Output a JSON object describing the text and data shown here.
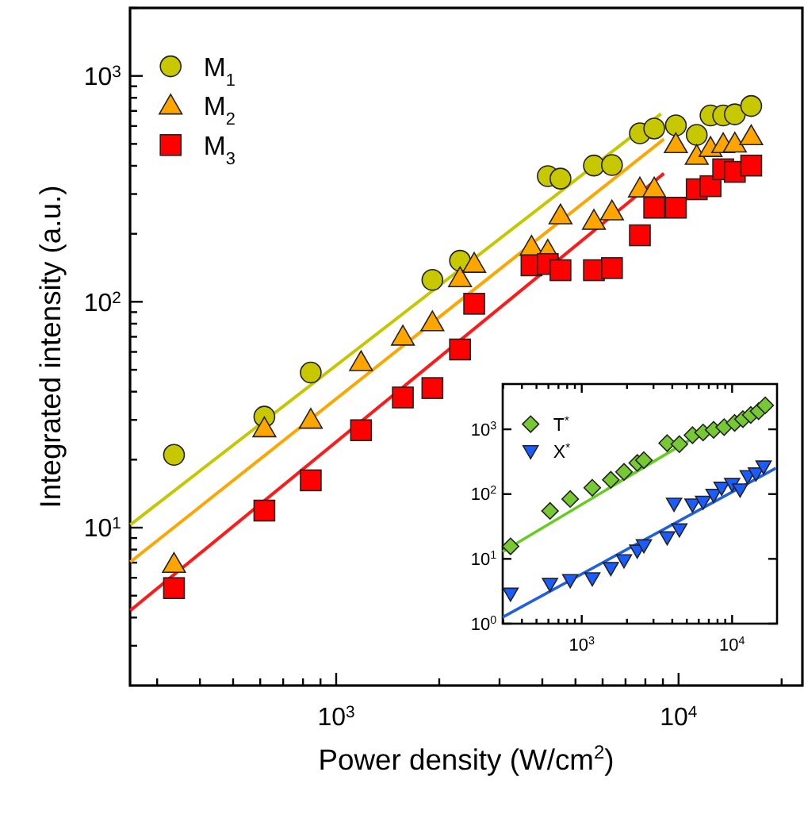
{
  "chart_data": [
    {
      "type": "scatter",
      "xlabel": "Power density (W/cm$^{2}$)",
      "ylabel": "Integrated intensity (a.u.)",
      "log": "xy",
      "grid": false,
      "legend": "top left",
      "xlim": [
        250,
        23000
      ],
      "ylim": [
        2,
        2000
      ],
      "xticks": [
        {
          "value": 300,
          "label": null
        },
        {
          "value": 400,
          "label": null
        },
        {
          "value": 500,
          "label": null
        },
        {
          "value": 600,
          "label": null
        },
        {
          "value": 700,
          "label": null
        },
        {
          "value": 800,
          "label": null
        },
        {
          "value": 900,
          "label": null
        },
        {
          "value": 1000,
          "label": "10$^{3}$"
        },
        {
          "value": 2000,
          "label": null
        },
        {
          "value": 3000,
          "label": null
        },
        {
          "value": 4000,
          "label": null
        },
        {
          "value": 5000,
          "label": null
        },
        {
          "value": 6000,
          "label": null
        },
        {
          "value": 7000,
          "label": null
        },
        {
          "value": 8000,
          "label": null
        },
        {
          "value": 9000,
          "label": null
        },
        {
          "value": 10000,
          "label": "10$^{4}$"
        },
        {
          "value": 20000,
          "label": null
        }
      ],
      "yticks": [
        {
          "value": 3,
          "label": null
        },
        {
          "value": 4,
          "label": null
        },
        {
          "value": 5,
          "label": null
        },
        {
          "value": 6,
          "label": null
        },
        {
          "value": 7,
          "label": null
        },
        {
          "value": 8,
          "label": null
        },
        {
          "value": 9,
          "label": null
        },
        {
          "value": 10,
          "label": "10$^{1}$"
        },
        {
          "value": 20,
          "label": null
        },
        {
          "value": 30,
          "label": null
        },
        {
          "value": 40,
          "label": null
        },
        {
          "value": 50,
          "label": null
        },
        {
          "value": 60,
          "label": null
        },
        {
          "value": 70,
          "label": null
        },
        {
          "value": 80,
          "label": null
        },
        {
          "value": 90,
          "label": null
        },
        {
          "value": 100,
          "label": "10$^{2}$"
        },
        {
          "value": 200,
          "label": null
        },
        {
          "value": 300,
          "label": null
        },
        {
          "value": 400,
          "label": null
        },
        {
          "value": 500,
          "label": null
        },
        {
          "value": 600,
          "label": null
        },
        {
          "value": 700,
          "label": null
        },
        {
          "value": 800,
          "label": null
        },
        {
          "value": 900,
          "label": null
        },
        {
          "value": 1000,
          "label": "10$^{3}$"
        },
        {
          "value": 2000,
          "label": null
        }
      ],
      "x": [
        336,
        617,
        843,
        1182,
        1566,
        1910,
        2300,
        2530,
        3720,
        4150,
        4520,
        5660,
        6390,
        7710,
        8490,
        9820,
        11300,
        12400,
        13500,
        14600,
        16300
      ],
      "series": [
        {
          "name": "M$_{1}$",
          "color": "#c8c800",
          "marker": "circle",
          "values": [
            21,
            31,
            48.6,
            null,
            null,
            125,
            152,
            null,
            null,
            360,
            351,
            401,
            403,
            557,
            585,
            604,
            548,
            668,
            668,
            676,
            736
          ]
        },
        {
          "name": "M$_{2}$",
          "color": "#ffa500",
          "marker": "triangle",
          "values": [
            6.9,
            27.5,
            30,
            54,
            70,
            81,
            127,
            147,
            175,
            168,
            241,
            228,
            251,
            317,
            317,
            498,
            442,
            479,
            498,
            501,
            540
          ]
        },
        {
          "name": "M$_{3}$",
          "color": "#ff0000",
          "marker": "square",
          "values": [
            5.4,
            11.9,
            16.2,
            27,
            37.7,
            41.5,
            61.5,
            98,
            145,
            147,
            138,
            138,
            141,
            197,
            261,
            261,
            315,
            325,
            386,
            376,
            401
          ]
        },
        {
          "type": "line",
          "color": "#c5c800",
          "x": [
            250.6,
            8890
          ],
          "values": [
            10.3,
            680
          ]
        },
        {
          "type": "line",
          "color": "#ffa500",
          "x": [
            250.6,
            9060
          ],
          "values": [
            7.05,
            525
          ]
        },
        {
          "type": "line",
          "color": "#ff1a1a",
          "x": [
            250.6,
            9060
          ],
          "values": [
            4.3,
            370
          ]
        }
      ]
    },
    {
      "type": "scatter",
      "log": "xy",
      "grid": false,
      "legend": "top left",
      "xlim": [
        298,
        19900
      ],
      "ylim": [
        1,
        5000
      ],
      "xticks": [
        {
          "value": 300,
          "label": null
        },
        {
          "value": 400,
          "label": null
        },
        {
          "value": 500,
          "label": null
        },
        {
          "value": 600,
          "label": null
        },
        {
          "value": 700,
          "label": null
        },
        {
          "value": 800,
          "label": null
        },
        {
          "value": 900,
          "label": null
        },
        {
          "value": 1000,
          "label": "10$^{3}$"
        },
        {
          "value": 2000,
          "label": null
        },
        {
          "value": 3000,
          "label": null
        },
        {
          "value": 4000,
          "label": null
        },
        {
          "value": 5000,
          "label": null
        },
        {
          "value": 6000,
          "label": null
        },
        {
          "value": 7000,
          "label": null
        },
        {
          "value": 8000,
          "label": null
        },
        {
          "value": 9000,
          "label": null
        },
        {
          "value": 10000,
          "label": "10$^{4}$"
        }
      ],
      "yticks": [
        {
          "value": 1,
          "label": "10$^{0}$"
        },
        {
          "value": 10,
          "label": "10$^{1}$"
        },
        {
          "value": 100,
          "label": "10$^{2}$"
        },
        {
          "value": 1000,
          "label": "10$^{3}$"
        }
      ],
      "series": [
        {
          "name": "T$^{*}$",
          "color": "#77c933",
          "marker": "diamond",
          "x": [
            336,
            615,
            838,
            1175,
            1560,
            1910,
            2340,
            2590,
            3700,
            4460,
            5450,
            6410,
            7530,
            8850,
            10400,
            11800,
            13300,
            15000,
            16600
          ],
          "values": [
            15.6,
            55,
            84,
            125,
            166,
            220,
            303,
            333,
            611,
            590,
            812,
            893,
            982,
            1080,
            1255,
            1433,
            1667,
            1900,
            2340
          ]
        },
        {
          "name": "X$^{*}$",
          "color": "#1a5cff",
          "marker": "triangle-down",
          "x": [
            336,
            615,
            838,
            1175,
            1560,
            1910,
            2340,
            2590,
            3700,
            4110,
            4460,
            5450,
            6410,
            7530,
            8510,
            10000,
            11300,
            12700,
            14400,
            16200
          ],
          "values": [
            2.9,
            4.1,
            4.7,
            5.0,
            7.2,
            9.5,
            13.4,
            16.2,
            21.5,
            71,
            28.5,
            69,
            76,
            97.5,
            125,
            143,
            118,
            189,
            208,
            266
          ]
        },
        {
          "type": "line",
          "color": "#66cc22",
          "x": [
            298,
            5920
          ],
          "values": [
            12.9,
            813
          ]
        },
        {
          "type": "line",
          "color": "#1f5fe0",
          "x": [
            298,
            19500
          ],
          "values": [
            1.26,
            251
          ]
        }
      ]
    }
  ]
}
